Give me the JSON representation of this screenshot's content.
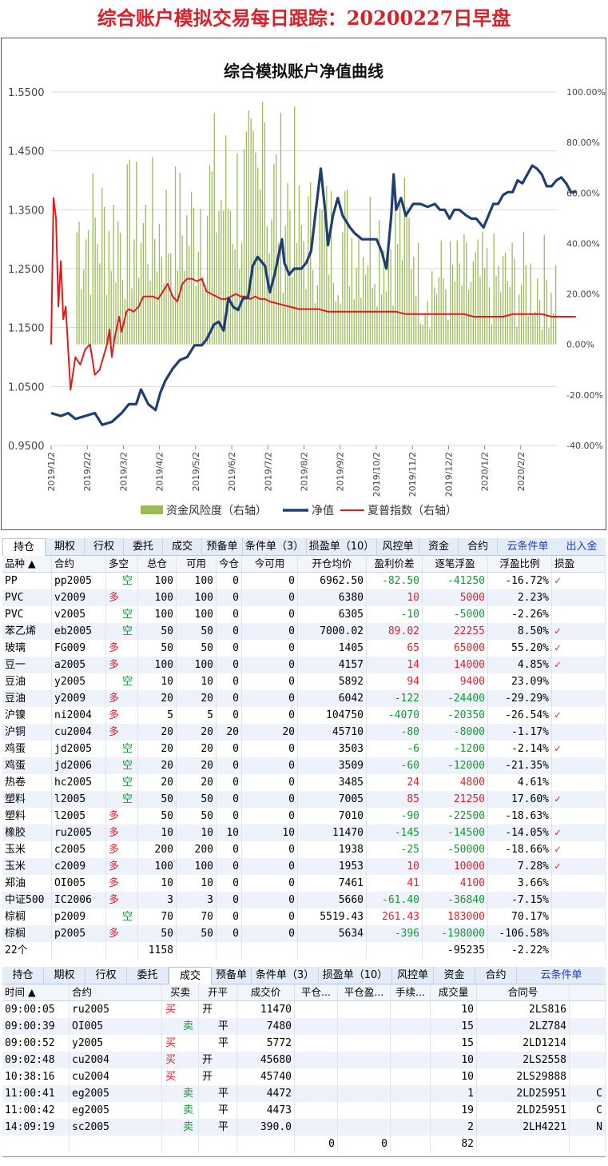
{
  "page_title": "综合账户模拟交易每日跟踪：20200227日早盘",
  "chart_data": {
    "type": "line",
    "title": "综合模拟账户净值曲线",
    "x_tick_labels": [
      "2019/1/2",
      "2019/2/2",
      "2019/3/2",
      "2019/4/2",
      "2019/5/2",
      "2019/6/2",
      "2019/7/2",
      "2019/8/2",
      "2019/9/2",
      "2019/10/2",
      "2019/11/2",
      "2019/12/2",
      "2020/1/2",
      "2020/2/2"
    ],
    "y_left": {
      "ticks": [
        "0.9500",
        "1.0500",
        "1.1500",
        "1.2500",
        "1.3500",
        "1.4500",
        "1.5500"
      ],
      "range": [
        0.95,
        1.55
      ]
    },
    "y_right": {
      "ticks": [
        "-40.00%",
        "-20.00%",
        "0.00%",
        "20.00%",
        "40.00%",
        "60.00%",
        "80.00%",
        "100.00%"
      ],
      "range": [
        -40,
        100
      ]
    },
    "series": [
      {
        "name": "资金风险度（右轴）",
        "axis": "right",
        "kind": "bar",
        "color": "#9bbb59"
      },
      {
        "name": "净值",
        "axis": "left",
        "kind": "line",
        "color": "#1f3f73",
        "points": [
          [
            0,
            1.005
          ],
          [
            0.02,
            1.0
          ],
          [
            0.035,
            1.005
          ],
          [
            0.05,
            0.995
          ],
          [
            0.07,
            1.0
          ],
          [
            0.09,
            1.005
          ],
          [
            0.105,
            0.985
          ],
          [
            0.125,
            0.99
          ],
          [
            0.145,
            1.005
          ],
          [
            0.16,
            1.02
          ],
          [
            0.175,
            1.02
          ],
          [
            0.185,
            1.045
          ],
          [
            0.2,
            1.02
          ],
          [
            0.215,
            1.01
          ],
          [
            0.225,
            1.04
          ],
          [
            0.235,
            1.06
          ],
          [
            0.25,
            1.08
          ],
          [
            0.265,
            1.095
          ],
          [
            0.28,
            1.1
          ],
          [
            0.295,
            1.12
          ],
          [
            0.31,
            1.12
          ],
          [
            0.32,
            1.13
          ],
          [
            0.335,
            1.155
          ],
          [
            0.345,
            1.16
          ],
          [
            0.355,
            1.145
          ],
          [
            0.365,
            1.2
          ],
          [
            0.375,
            1.185
          ],
          [
            0.385,
            1.18
          ],
          [
            0.395,
            1.2
          ],
          [
            0.405,
            1.2
          ],
          [
            0.415,
            1.255
          ],
          [
            0.425,
            1.27
          ],
          [
            0.44,
            1.255
          ],
          [
            0.45,
            1.21
          ],
          [
            0.46,
            1.24
          ],
          [
            0.475,
            1.3
          ],
          [
            0.48,
            1.26
          ],
          [
            0.49,
            1.24
          ],
          [
            0.5,
            1.25
          ],
          [
            0.515,
            1.25
          ],
          [
            0.525,
            1.26
          ],
          [
            0.535,
            1.28
          ],
          [
            0.545,
            1.35
          ],
          [
            0.555,
            1.42
          ],
          [
            0.565,
            1.34
          ],
          [
            0.57,
            1.29
          ],
          [
            0.58,
            1.34
          ],
          [
            0.59,
            1.37
          ],
          [
            0.6,
            1.34
          ],
          [
            0.615,
            1.32
          ],
          [
            0.625,
            1.31
          ],
          [
            0.64,
            1.3
          ],
          [
            0.655,
            1.3
          ],
          [
            0.67,
            1.3
          ],
          [
            0.68,
            1.28
          ],
          [
            0.69,
            1.25
          ],
          [
            0.7,
            1.34
          ],
          [
            0.705,
            1.41
          ],
          [
            0.71,
            1.35
          ],
          [
            0.72,
            1.37
          ],
          [
            0.73,
            1.34
          ],
          [
            0.745,
            1.36
          ],
          [
            0.76,
            1.36
          ],
          [
            0.775,
            1.355
          ],
          [
            0.79,
            1.36
          ],
          [
            0.8,
            1.35
          ],
          [
            0.81,
            1.35
          ],
          [
            0.82,
            1.335
          ],
          [
            0.83,
            1.35
          ],
          [
            0.84,
            1.35
          ],
          [
            0.855,
            1.34
          ],
          [
            0.865,
            1.335
          ],
          [
            0.875,
            1.335
          ],
          [
            0.89,
            1.32
          ],
          [
            0.9,
            1.34
          ],
          [
            0.91,
            1.36
          ],
          [
            0.92,
            1.36
          ],
          [
            0.93,
            1.375
          ],
          [
            0.94,
            1.38
          ],
          [
            0.95,
            1.38
          ],
          [
            0.96,
            1.4
          ],
          [
            0.97,
            1.395
          ],
          [
            0.98,
            1.41
          ],
          [
            0.99,
            1.425
          ],
          [
            1.0,
            1.42
          ],
          [
            1.01,
            1.41
          ],
          [
            1.02,
            1.39
          ],
          [
            1.03,
            1.39
          ],
          [
            1.04,
            1.4
          ],
          [
            1.05,
            1.405
          ],
          [
            1.06,
            1.395
          ],
          [
            1.07,
            1.38
          ],
          [
            1.08,
            1.38
          ]
        ]
      },
      {
        "name": "夏普指数（右轴）",
        "axis": "right",
        "kind": "line",
        "color": "#e01b1b",
        "points": [
          [
            0,
            0
          ],
          [
            0.005,
            58
          ],
          [
            0.01,
            50
          ],
          [
            0.015,
            15
          ],
          [
            0.02,
            33
          ],
          [
            0.025,
            10
          ],
          [
            0.03,
            15
          ],
          [
            0.04,
            -18
          ],
          [
            0.05,
            -5
          ],
          [
            0.06,
            -8
          ],
          [
            0.07,
            -2
          ],
          [
            0.08,
            0
          ],
          [
            0.09,
            -12
          ],
          [
            0.1,
            -10
          ],
          [
            0.115,
            0
          ],
          [
            0.12,
            6
          ],
          [
            0.125,
            -5
          ],
          [
            0.13,
            2
          ],
          [
            0.14,
            11
          ],
          [
            0.145,
            5
          ],
          [
            0.155,
            13
          ],
          [
            0.16,
            14
          ],
          [
            0.17,
            13
          ],
          [
            0.18,
            15
          ],
          [
            0.19,
            19
          ],
          [
            0.2,
            19
          ],
          [
            0.21,
            19
          ],
          [
            0.22,
            18
          ],
          [
            0.23,
            21
          ],
          [
            0.24,
            24
          ],
          [
            0.25,
            19
          ],
          [
            0.26,
            17
          ],
          [
            0.27,
            24
          ],
          [
            0.28,
            26
          ],
          [
            0.29,
            26
          ],
          [
            0.3,
            25
          ],
          [
            0.31,
            26
          ],
          [
            0.32,
            21
          ],
          [
            0.33,
            20
          ],
          [
            0.34,
            19
          ],
          [
            0.35,
            18
          ],
          [
            0.36,
            18
          ],
          [
            0.37,
            19
          ],
          [
            0.38,
            20
          ],
          [
            0.39,
            19
          ],
          [
            0.4,
            19
          ],
          [
            0.41,
            18
          ],
          [
            0.42,
            19
          ],
          [
            0.43,
            18
          ],
          [
            0.44,
            18
          ],
          [
            0.45,
            17
          ],
          [
            0.47,
            16
          ],
          [
            0.49,
            15
          ],
          [
            0.51,
            14
          ],
          [
            0.53,
            14
          ],
          [
            0.55,
            14
          ],
          [
            0.57,
            13
          ],
          [
            0.59,
            13
          ],
          [
            0.61,
            13
          ],
          [
            0.63,
            13
          ],
          [
            0.65,
            13
          ],
          [
            0.67,
            13
          ],
          [
            0.69,
            13
          ],
          [
            0.71,
            13
          ],
          [
            0.73,
            12
          ],
          [
            0.75,
            12
          ],
          [
            0.77,
            12
          ],
          [
            0.79,
            12
          ],
          [
            0.81,
            12
          ],
          [
            0.83,
            12
          ],
          [
            0.85,
            12
          ],
          [
            0.87,
            11
          ],
          [
            0.89,
            11
          ],
          [
            0.91,
            11
          ],
          [
            0.93,
            11
          ],
          [
            0.95,
            12
          ],
          [
            0.97,
            12
          ],
          [
            0.99,
            12
          ],
          [
            1.01,
            12
          ],
          [
            1.03,
            11
          ],
          [
            1.05,
            11
          ],
          [
            1.07,
            11
          ],
          [
            1.08,
            11
          ]
        ]
      }
    ],
    "legend_position": "bottom",
    "grid": "horizontal"
  },
  "positions": {
    "tabs": [
      "持仓",
      "期权",
      "行权",
      "委托",
      "成交",
      "预备单",
      "条件单（3）",
      "损盈单（10）",
      "风控单",
      "资金",
      "合约",
      "云条件单",
      "出入金"
    ],
    "active_tab": 0,
    "headers": [
      "品种 ▲",
      "合约",
      "多空",
      "总仓",
      "可用",
      "今仓",
      "今可用",
      "开仓均价",
      "盈利价差",
      "逐笔浮盈",
      "浮盈比例",
      "损盈"
    ],
    "rows": [
      [
        "PP",
        "pp2005",
        "空",
        "100",
        "100",
        "0",
        "0",
        "6962.50",
        "-82.50",
        "-41250",
        "-16.72%",
        "✓"
      ],
      [
        "PVC",
        "v2009",
        "多",
        "100",
        "100",
        "0",
        "0",
        "6380",
        "10",
        "5000",
        "2.23%",
        ""
      ],
      [
        "PVC",
        "v2005",
        "空",
        "100",
        "100",
        "0",
        "0",
        "6305",
        "-10",
        "-5000",
        "-2.26%",
        ""
      ],
      [
        "苯乙烯",
        "eb2005",
        "空",
        "50",
        "50",
        "0",
        "0",
        "7000.02",
        "89.02",
        "22255",
        "8.50%",
        "✓"
      ],
      [
        "玻璃",
        "FG009",
        "多",
        "50",
        "50",
        "0",
        "0",
        "1405",
        "65",
        "65000",
        "55.20%",
        "✓"
      ],
      [
        "豆一",
        "a2005",
        "多",
        "100",
        "100",
        "0",
        "0",
        "4157",
        "14",
        "14000",
        "4.85%",
        "✓"
      ],
      [
        "豆油",
        "y2005",
        "空",
        "10",
        "10",
        "0",
        "0",
        "5892",
        "94",
        "9400",
        "23.09%",
        ""
      ],
      [
        "豆油",
        "y2009",
        "多",
        "20",
        "20",
        "0",
        "0",
        "6042",
        "-122",
        "-24400",
        "-29.29%",
        ""
      ],
      [
        "沪镍",
        "ni2004",
        "多",
        "5",
        "5",
        "0",
        "0",
        "104750",
        "-4070",
        "-20350",
        "-26.54%",
        "✓"
      ],
      [
        "沪铜",
        "cu2004",
        "多",
        "20",
        "20",
        "20",
        "20",
        "45710",
        "-80",
        "-8000",
        "-1.17%",
        ""
      ],
      [
        "鸡蛋",
        "jd2005",
        "空",
        "20",
        "20",
        "0",
        "0",
        "3503",
        "-6",
        "-1200",
        "-2.14%",
        "✓"
      ],
      [
        "鸡蛋",
        "jd2006",
        "空",
        "20",
        "20",
        "0",
        "0",
        "3509",
        "-60",
        "-12000",
        "-21.35%",
        ""
      ],
      [
        "热卷",
        "hc2005",
        "空",
        "20",
        "20",
        "0",
        "0",
        "3485",
        "24",
        "4800",
        "4.61%",
        ""
      ],
      [
        "塑料",
        "l2005",
        "空",
        "50",
        "50",
        "0",
        "0",
        "7005",
        "85",
        "21250",
        "17.60%",
        "✓"
      ],
      [
        "塑料",
        "l2005",
        "多",
        "50",
        "50",
        "0",
        "0",
        "7010",
        "-90",
        "-22500",
        "-18.63%",
        ""
      ],
      [
        "橡胶",
        "ru2005",
        "多",
        "10",
        "10",
        "10",
        "10",
        "11470",
        "-145",
        "-14500",
        "-14.05%",
        "✓"
      ],
      [
        "玉米",
        "c2005",
        "多",
        "200",
        "200",
        "0",
        "0",
        "1938",
        "-25",
        "-50000",
        "-18.66%",
        "✓"
      ],
      [
        "玉米",
        "c2009",
        "多",
        "100",
        "100",
        "0",
        "0",
        "1953",
        "10",
        "10000",
        "7.28%",
        "✓"
      ],
      [
        "郑油",
        "OI005",
        "多",
        "10",
        "10",
        "0",
        "0",
        "7461",
        "41",
        "4100",
        "3.66%",
        ""
      ],
      [
        "中证500",
        "IC2006",
        "多",
        "3",
        "3",
        "0",
        "0",
        "5660",
        "-61.40",
        "-36840",
        "-7.15%",
        ""
      ],
      [
        "棕榈",
        "p2009",
        "空",
        "70",
        "70",
        "0",
        "0",
        "5519.43",
        "261.43",
        "183000",
        "70.17%",
        ""
      ],
      [
        "棕榈",
        "p2005",
        "多",
        "50",
        "50",
        "0",
        "0",
        "5634",
        "-396",
        "-198000",
        "-106.58%",
        ""
      ]
    ],
    "summary": {
      "count": "22个",
      "total": "1158",
      "float_pnl": "-95235",
      "ratio": "-2.22%"
    }
  },
  "trades": {
    "tabs": [
      "持仓",
      "期权",
      "行权",
      "委托",
      "成交",
      "预备单",
      "条件单（3）",
      "损盈单（10）",
      "风控单",
      "资金",
      "合约",
      "云条件单"
    ],
    "active_tab": 4,
    "headers": [
      "时间 ▲",
      "合约",
      "买卖",
      "开平",
      "成交价",
      "平仓...",
      "平仓盈...",
      "手续...",
      "成交量",
      "合同号"
    ],
    "rows": [
      [
        "09:00:05",
        "ru2005",
        "买",
        "开",
        "11470",
        "",
        "",
        "",
        "10",
        "2LS816",
        ""
      ],
      [
        "09:00:39",
        "OI005",
        "卖",
        "平",
        "7480",
        "",
        "",
        "",
        "15",
        "2LZ784",
        ""
      ],
      [
        "09:00:52",
        "y2005",
        "买",
        "平",
        "5772",
        "",
        "",
        "",
        "15",
        "2LD1214",
        ""
      ],
      [
        "09:02:48",
        "cu2004",
        "买",
        "开",
        "45680",
        "",
        "",
        "",
        "10",
        "2LS2558",
        ""
      ],
      [
        "10:38:16",
        "cu2004",
        "买",
        "开",
        "45740",
        "",
        "",
        "",
        "10",
        "2LS29888",
        ""
      ],
      [
        "11:00:41",
        "eg2005",
        "卖",
        "平",
        "4472",
        "",
        "",
        "",
        "1",
        "2LD25951",
        "C"
      ],
      [
        "11:00:42",
        "eg2005",
        "卖",
        "平",
        "4473",
        "",
        "",
        "",
        "19",
        "2LD25951",
        "C"
      ],
      [
        "14:09:19",
        "sc2005",
        "卖",
        "平",
        "390.0",
        "",
        "",
        "",
        "2",
        "2LH4221",
        "N"
      ]
    ],
    "summary": {
      "close_amt": "0",
      "close_pnl": "0",
      "volume": "82"
    }
  }
}
